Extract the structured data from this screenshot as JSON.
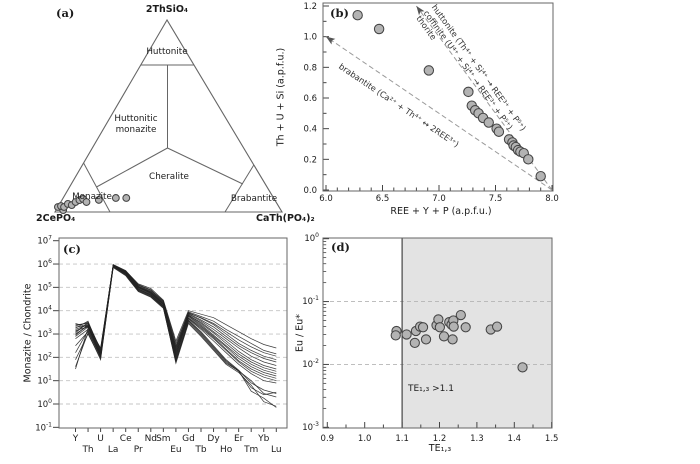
{
  "chart_data": [
    {
      "panel": "a",
      "label": "(a)",
      "type": "scatter",
      "subtype": "ternary",
      "vertices": {
        "top": "2ThSiO₄",
        "left": "2CePO₄",
        "right": "CaTh(PO₄)₂"
      },
      "regions": {
        "huttonite": "Huttonite",
        "huttonitic_monazite": "Huttonitic monazite",
        "cheralite": "Cheralite",
        "monazite": "Monazite",
        "brabantite": "Brabantite"
      },
      "points_mol_fraction_2CePO4_CaThPO42_2ThSiO4": [
        [
          0.974,
          0.0,
          0.026
        ],
        [
          0.959,
          0.031,
          0.01
        ],
        [
          0.958,
          0.011,
          0.031
        ],
        [
          0.947,
          0.027,
          0.026
        ],
        [
          0.922,
          0.036,
          0.042
        ],
        [
          0.908,
          0.056,
          0.036
        ],
        [
          0.883,
          0.065,
          0.052
        ],
        [
          0.861,
          0.077,
          0.062
        ],
        [
          0.842,
          0.09,
          0.068
        ],
        [
          0.835,
          0.113,
          0.052
        ],
        [
          0.775,
          0.162,
          0.063
        ],
        [
          0.695,
          0.232,
          0.073
        ],
        [
          0.649,
          0.278,
          0.073
        ]
      ]
    },
    {
      "panel": "b",
      "label": "(b)",
      "type": "scatter",
      "xlabel": "REE + Y + P (a.p.f.u.)",
      "ylabel": "Th + U + Si (a.p.f.u.)",
      "xlim": [
        6.0,
        8.0
      ],
      "ylim": [
        0.0,
        1.2
      ],
      "xticks": [
        6.0,
        6.5,
        7.0,
        7.5,
        8.0
      ],
      "yticks": [
        0.0,
        0.2,
        0.4,
        0.6,
        0.8,
        1.0,
        1.2
      ],
      "substitution_lines": [
        {
          "name": "huttonite-coffinite-thorite",
          "from": [
            8.0,
            0.0
          ],
          "to": [
            6.8,
            1.2
          ],
          "labels": [
            "huttonite (Th⁴⁺ + Si⁴⁺ → REE³⁺ + P⁵⁺)",
            "coffinite (U⁴⁺ + Si⁴⁺ → REE³⁺ + P⁵⁺)",
            "thorite"
          ]
        },
        {
          "name": "brabantite",
          "from": [
            8.0,
            0.0
          ],
          "to": [
            6.0,
            1.0
          ],
          "labels": [
            "brabantite (Ca²⁺ + Th⁴⁺ ↔ 2REE³⁺)"
          ]
        }
      ],
      "points": [
        [
          6.28,
          1.14
        ],
        [
          6.47,
          1.05
        ],
        [
          6.91,
          0.78
        ],
        [
          7.26,
          0.64
        ],
        [
          7.29,
          0.55
        ],
        [
          7.32,
          0.52
        ],
        [
          7.35,
          0.5
        ],
        [
          7.39,
          0.47
        ],
        [
          7.44,
          0.44
        ],
        [
          7.51,
          0.4
        ],
        [
          7.53,
          0.38
        ],
        [
          7.62,
          0.33
        ],
        [
          7.65,
          0.31
        ],
        [
          7.66,
          0.29
        ],
        [
          7.68,
          0.28
        ],
        [
          7.7,
          0.26
        ],
        [
          7.72,
          0.25
        ],
        [
          7.75,
          0.24
        ],
        [
          7.79,
          0.2
        ],
        [
          7.9,
          0.09
        ]
      ]
    },
    {
      "panel": "c",
      "label": "(c)",
      "type": "line",
      "ylabel": "Monazite / Chondrite",
      "ylim_log10": [
        -1,
        7
      ],
      "categories": [
        "Y",
        "Th",
        "U",
        "La",
        "Ce",
        "Pr",
        "Nd",
        "Sm",
        "Eu",
        "Gd",
        "Tb",
        "Dy",
        "Ho",
        "Er",
        "Tm",
        "Yb",
        "Lu"
      ],
      "category_rows": [
        0,
        1,
        0,
        1,
        0,
        1,
        0,
        0,
        1,
        0,
        1,
        0,
        1,
        0,
        1,
        0,
        1
      ],
      "series_values_log10": [
        [
          3.45,
          3.3,
          2.4,
          5.95,
          5.7,
          5.15,
          4.95,
          4.45,
          2.7,
          4.0,
          3.85,
          3.7,
          3.4,
          3.1,
          2.8,
          2.55,
          2.4
        ],
        [
          3.4,
          3.45,
          2.3,
          5.95,
          5.68,
          5.1,
          4.9,
          4.4,
          2.5,
          3.95,
          3.75,
          3.55,
          3.2,
          2.9,
          2.6,
          2.3,
          2.15
        ],
        [
          3.35,
          3.5,
          2.35,
          5.98,
          5.72,
          5.12,
          4.88,
          4.42,
          2.6,
          3.9,
          3.7,
          3.45,
          3.1,
          2.75,
          2.45,
          2.2,
          2.05
        ],
        [
          3.3,
          3.35,
          2.2,
          5.92,
          5.65,
          5.05,
          4.82,
          4.35,
          2.4,
          3.92,
          3.68,
          3.4,
          3.0,
          2.6,
          2.3,
          2.05,
          1.9
        ],
        [
          3.25,
          3.55,
          2.25,
          5.96,
          5.7,
          5.08,
          4.85,
          4.38,
          2.3,
          3.88,
          3.6,
          3.3,
          2.9,
          2.5,
          2.2,
          1.95,
          1.8
        ],
        [
          3.2,
          3.4,
          2.15,
          5.94,
          5.66,
          5.0,
          4.78,
          4.3,
          2.2,
          3.85,
          3.55,
          3.2,
          2.8,
          2.4,
          2.05,
          1.8,
          1.65
        ],
        [
          3.15,
          3.3,
          2.1,
          5.93,
          5.64,
          4.98,
          4.75,
          4.28,
          2.1,
          3.8,
          3.5,
          3.1,
          2.7,
          2.25,
          1.9,
          1.65,
          1.5
        ],
        [
          3.1,
          3.45,
          2.2,
          5.97,
          5.69,
          5.04,
          4.8,
          4.33,
          2.0,
          3.82,
          3.45,
          3.05,
          2.6,
          2.15,
          1.8,
          1.55,
          1.4
        ],
        [
          3.05,
          3.5,
          2.3,
          5.95,
          5.67,
          5.02,
          4.77,
          4.3,
          2.45,
          3.78,
          3.4,
          2.95,
          2.5,
          2.05,
          1.7,
          1.45,
          1.3
        ],
        [
          3.0,
          3.35,
          2.1,
          5.9,
          5.62,
          4.95,
          4.72,
          4.25,
          2.35,
          3.75,
          3.35,
          2.9,
          2.45,
          1.95,
          1.6,
          1.35,
          1.2
        ],
        [
          2.95,
          3.4,
          2.15,
          5.94,
          5.65,
          5.0,
          4.74,
          4.27,
          2.25,
          3.7,
          3.3,
          2.85,
          2.35,
          1.85,
          1.5,
          1.25,
          1.1
        ],
        [
          2.9,
          3.3,
          2.05,
          5.92,
          5.6,
          4.92,
          4.7,
          4.22,
          2.15,
          3.68,
          3.25,
          2.8,
          2.3,
          1.8,
          1.4,
          1.15,
          1.0
        ],
        [
          2.8,
          3.2,
          2.0,
          5.9,
          5.58,
          4.9,
          4.68,
          4.2,
          2.05,
          3.65,
          3.2,
          2.7,
          2.2,
          1.7,
          1.3,
          1.0,
          0.9
        ],
        [
          2.5,
          3.1,
          2.0,
          5.88,
          5.55,
          4.88,
          4.65,
          4.18,
          1.95,
          3.6,
          3.1,
          2.5,
          1.9,
          1.45,
          0.9,
          0.6,
          0.45
        ],
        [
          2.2,
          3.15,
          2.05,
          5.9,
          5.56,
          4.86,
          4.62,
          4.15,
          1.85,
          3.55,
          3.0,
          2.4,
          1.8,
          1.4,
          0.7,
          0.4,
          0.5
        ],
        [
          1.9,
          3.0,
          1.95,
          5.85,
          5.5,
          4.82,
          4.58,
          4.1,
          1.8,
          3.5,
          2.95,
          2.35,
          1.75,
          1.42,
          0.55,
          0.25,
          -0.15
        ],
        [
          1.6,
          3.05,
          1.9,
          5.87,
          5.52,
          4.84,
          4.6,
          4.12,
          1.75,
          3.45,
          2.9,
          2.3,
          1.7,
          1.35,
          0.8,
          0.1,
          -0.1
        ],
        [
          1.5,
          3.25,
          2.1,
          5.93,
          5.6,
          4.94,
          4.66,
          4.17,
          1.9,
          3.58,
          3.05,
          2.45,
          1.85,
          1.42,
          1.0,
          0.45,
          0.3
        ]
      ]
    },
    {
      "panel": "d",
      "label": "(d)",
      "type": "scatter",
      "xlabel": "TE₁,₃",
      "ylabel": "Eu / Eu*",
      "xlim": [
        0.9,
        1.5
      ],
      "ylim_log10": [
        -3,
        0
      ],
      "xticks": [
        0.9,
        1.0,
        1.1,
        1.2,
        1.3,
        1.4,
        1.5
      ],
      "gridlines_y": [
        0.1,
        0.01
      ],
      "shaded_region": {
        "threshold_x": 1.1,
        "label": "TE₁,₃ >1.1",
        "color": "#e3e3e3"
      },
      "points": [
        [
          1.085,
          0.034
        ],
        [
          1.083,
          0.029
        ],
        [
          1.112,
          0.03
        ],
        [
          1.134,
          0.022
        ],
        [
          1.137,
          0.034
        ],
        [
          1.148,
          0.04
        ],
        [
          1.156,
          0.039
        ],
        [
          1.164,
          0.025
        ],
        [
          1.192,
          0.042
        ],
        [
          1.197,
          0.052
        ],
        [
          1.201,
          0.039
        ],
        [
          1.212,
          0.028
        ],
        [
          1.226,
          0.047
        ],
        [
          1.232,
          0.043
        ],
        [
          1.237,
          0.05
        ],
        [
          1.238,
          0.04
        ],
        [
          1.235,
          0.025
        ],
        [
          1.257,
          0.061
        ],
        [
          1.27,
          0.039
        ],
        [
          1.337,
          0.036
        ],
        [
          1.354,
          0.04
        ],
        [
          1.422,
          0.009
        ]
      ]
    }
  ],
  "style": {
    "marker_fill": "#b3b3b3",
    "marker_stroke": "#444444",
    "frame_color": "#666666",
    "dashed_line_color": "#9a9a9a",
    "grid_color": "#c4c4c4",
    "spider_line_color": "#222222",
    "shade_color": "#e3e3e3"
  }
}
